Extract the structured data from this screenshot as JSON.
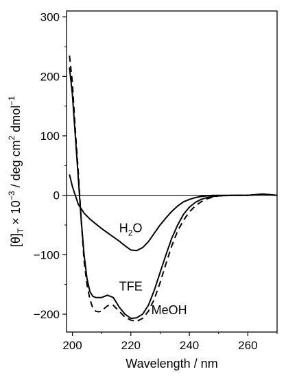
{
  "chart_data": {
    "type": "line",
    "xlabel": "Wavelength / nm",
    "ylabel": {
      "part1": "[θ]",
      "sub": "T",
      "part2": " × 10",
      "sup1": "−3",
      "part3": " / deg cm",
      "sup2": "2",
      "part4": " dmol",
      "sup3": "−1"
    },
    "xlim": [
      198,
      270
    ],
    "ylim": [
      -230,
      310
    ],
    "xticks": [
      200,
      220,
      240,
      260
    ],
    "yticks": [
      -200,
      -100,
      0,
      100,
      200,
      300
    ],
    "zero_line": true,
    "series": [
      {
        "name": "H2O",
        "style": "solid",
        "x": [
          199,
          200,
          202,
          204,
          206,
          208,
          210,
          212,
          214,
          216,
          218,
          220,
          222,
          224,
          226,
          228,
          230,
          232,
          234,
          236,
          238,
          240,
          242,
          244,
          246,
          248,
          250,
          255,
          260,
          265,
          270
        ],
        "y": [
          35,
          15,
          -15,
          -30,
          -40,
          -48,
          -56,
          -63,
          -70,
          -77,
          -85,
          -92,
          -93,
          -88,
          -78,
          -64,
          -50,
          -38,
          -27,
          -18,
          -11,
          -7,
          -4,
          -2,
          -1,
          0,
          0,
          0,
          0,
          2,
          0
        ]
      },
      {
        "name": "TFE",
        "style": "solid",
        "x": [
          199,
          200,
          201,
          202,
          203,
          204,
          205,
          206,
          207,
          208,
          209,
          210,
          212,
          214,
          216,
          218,
          220,
          222,
          224,
          226,
          228,
          230,
          232,
          234,
          236,
          238,
          240,
          242,
          244,
          246,
          248,
          250,
          255,
          260,
          265,
          270
        ],
        "y": [
          215,
          170,
          100,
          30,
          -40,
          -100,
          -140,
          -162,
          -170,
          -172,
          -172,
          -172,
          -168,
          -172,
          -188,
          -200,
          -207,
          -206,
          -200,
          -185,
          -160,
          -130,
          -100,
          -72,
          -50,
          -32,
          -20,
          -12,
          -7,
          -4,
          -2,
          -1,
          0,
          0,
          2,
          0
        ]
      },
      {
        "name": "MeOH",
        "style": "dashed",
        "x": [
          199,
          200,
          201,
          202,
          203,
          204,
          205,
          206,
          207,
          208,
          209,
          210,
          211,
          212,
          213,
          214,
          216,
          218,
          220,
          222,
          224,
          226,
          228,
          230,
          232,
          234,
          236,
          238,
          240,
          242,
          244,
          246,
          248,
          250,
          255,
          260,
          265,
          270
        ],
        "y": [
          235,
          190,
          110,
          40,
          -40,
          -110,
          -150,
          -175,
          -190,
          -195,
          -196,
          -195,
          -190,
          -186,
          -184,
          -185,
          -195,
          -205,
          -210,
          -212,
          -207,
          -195,
          -175,
          -147,
          -115,
          -85,
          -60,
          -42,
          -28,
          -18,
          -11,
          -6,
          -3,
          -1,
          0,
          0,
          2,
          0
        ]
      }
    ],
    "annotations": [
      {
        "key": "h2o",
        "text": "H",
        "sub": "2",
        "text2": "O",
        "x": 216,
        "y": -62
      },
      {
        "key": "tfe",
        "text": "TFE",
        "x": 216,
        "y": -160
      },
      {
        "key": "meoh",
        "text": "MeOH",
        "x": 227,
        "y": -200
      }
    ]
  }
}
